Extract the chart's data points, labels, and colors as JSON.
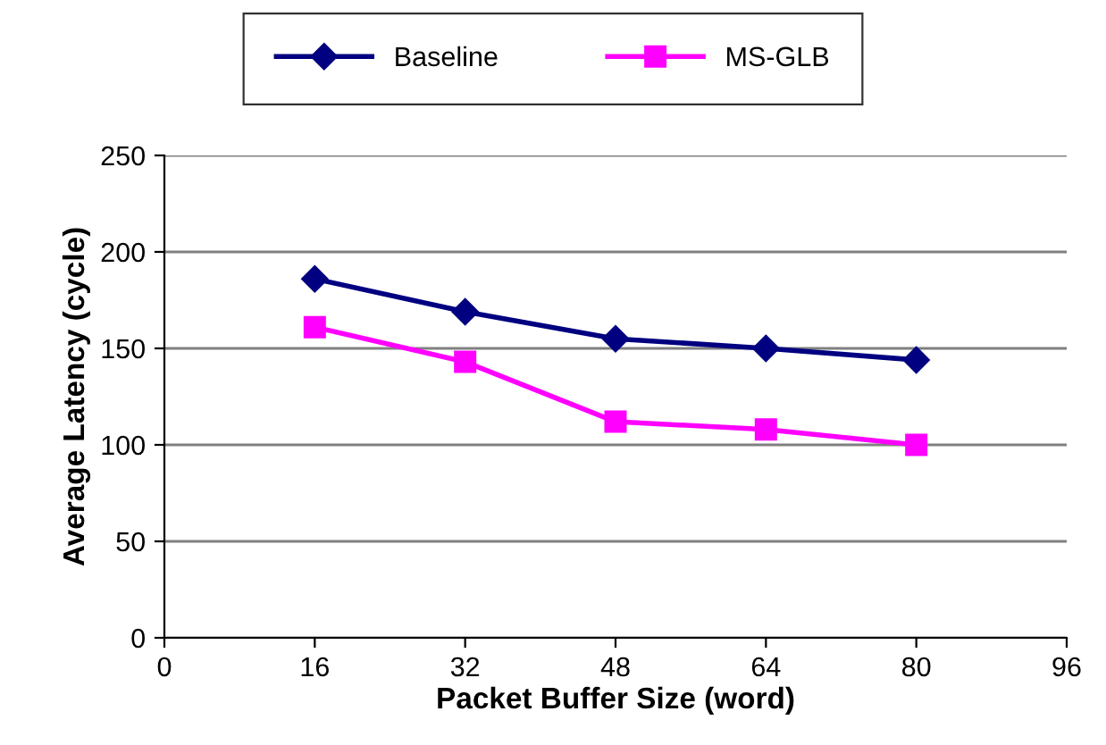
{
  "chart_data": {
    "type": "line",
    "xlabel": "Packet Buffer Size (word)",
    "ylabel": "Average Latency (cycle)",
    "x": [
      16,
      32,
      48,
      64,
      80
    ],
    "series": [
      {
        "name": "Baseline",
        "color": "#000080",
        "marker": "diamond",
        "values": [
          186,
          169,
          155,
          150,
          144
        ]
      },
      {
        "name": "MS-GLB",
        "color": "#ff00ff",
        "marker": "square",
        "values": [
          161,
          143,
          112,
          108,
          100
        ]
      }
    ],
    "xlim": [
      0,
      96
    ],
    "xticks": [
      0,
      16,
      32,
      48,
      64,
      80,
      96
    ],
    "ylim": [
      0,
      250
    ],
    "yticks": [
      0,
      50,
      100,
      150,
      200,
      250
    ],
    "grid": "y",
    "legend": "top",
    "line_style": "solid"
  }
}
